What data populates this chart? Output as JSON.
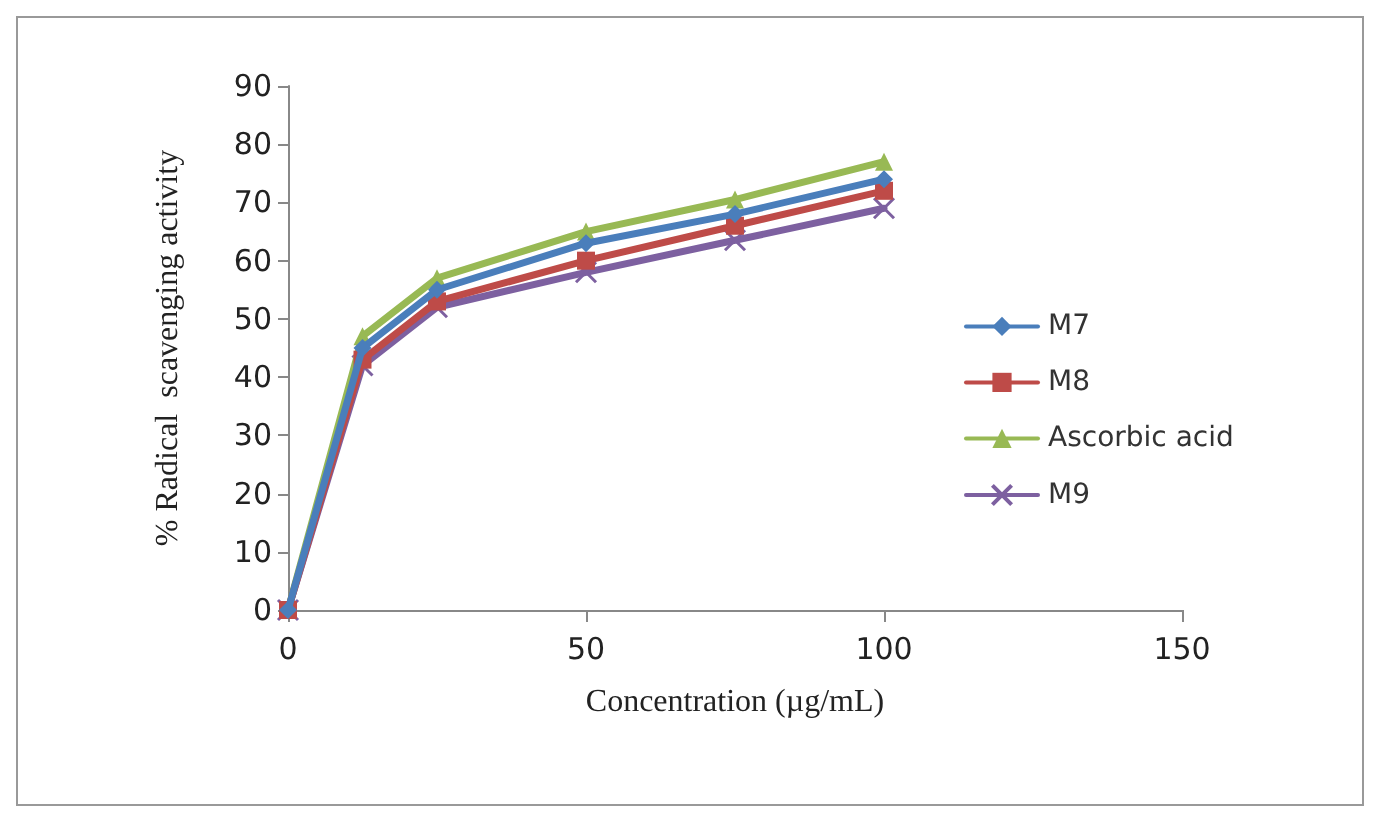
{
  "chart_data": {
    "type": "line",
    "xlabel": "Concentration (µg/mL)",
    "ylabel": "% Radical  scavenging activity",
    "x": [
      0,
      12.5,
      25,
      50,
      75,
      100
    ],
    "xlim": [
      0,
      150
    ],
    "xticks": [
      0,
      50,
      100,
      150
    ],
    "ylim": [
      0,
      90
    ],
    "yticks": [
      0,
      10,
      20,
      30,
      40,
      50,
      60,
      70,
      80,
      90
    ],
    "grid": false,
    "legend": "right",
    "line_style": "solid",
    "series": [
      {
        "name": "M7",
        "color": "#4a7ebb",
        "marker": "diamond",
        "values": [
          0,
          45,
          55,
          63,
          68,
          74
        ]
      },
      {
        "name": "M8",
        "color": "#be4b48",
        "marker": "square",
        "values": [
          0,
          43,
          53,
          60,
          66,
          72
        ]
      },
      {
        "name": "Ascorbic acid",
        "color": "#98b954",
        "marker": "triangle",
        "values": [
          0,
          47,
          57,
          65,
          70.5,
          77
        ]
      },
      {
        "name": "M9",
        "color": "#7d60a0",
        "marker": "cross",
        "values": [
          0,
          42,
          52,
          58,
          63.5,
          69
        ]
      }
    ]
  }
}
